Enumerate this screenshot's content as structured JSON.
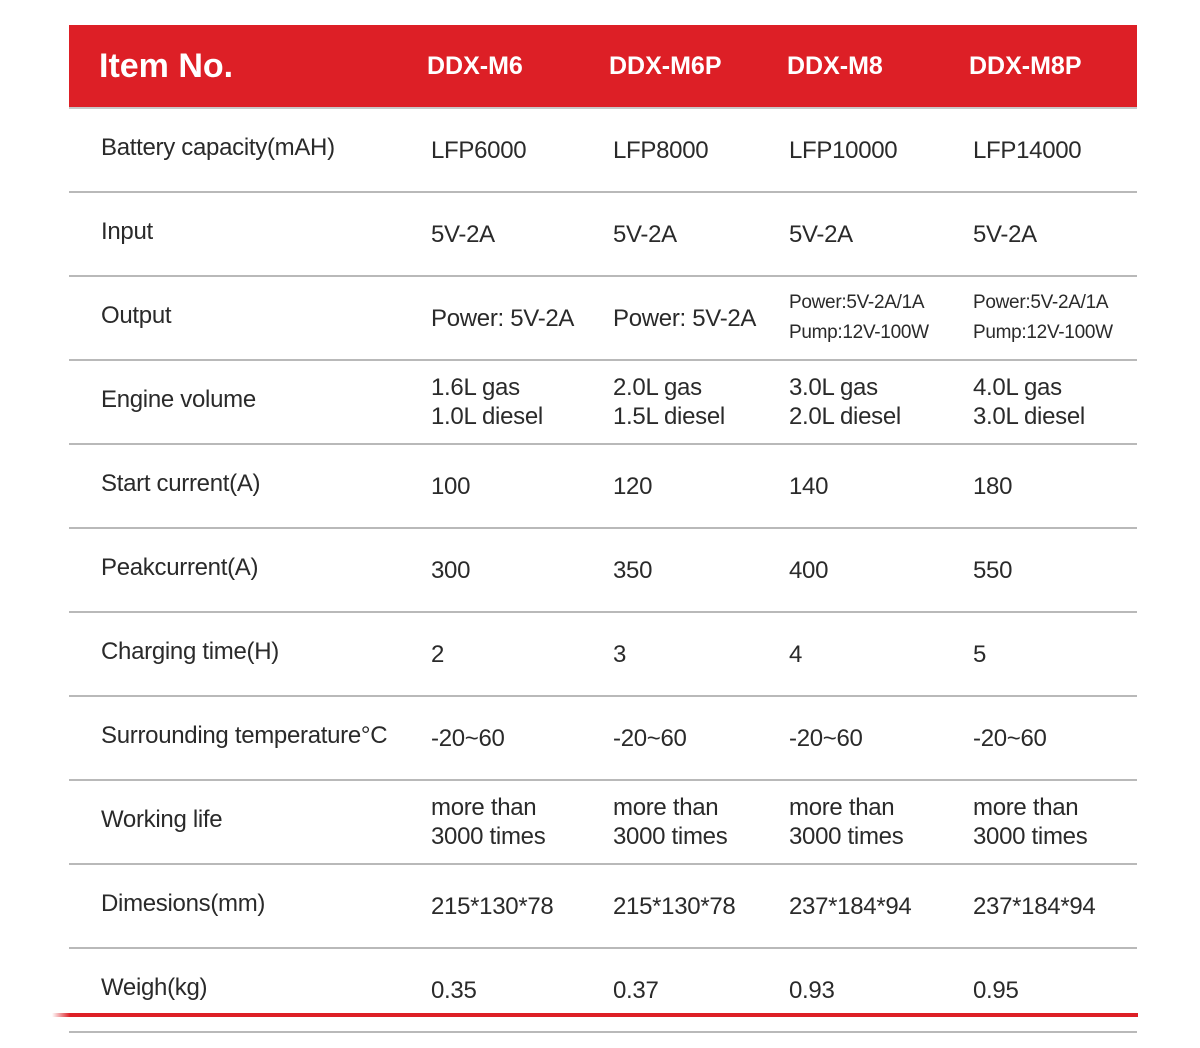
{
  "header": {
    "item_label": "Item No.",
    "models": [
      "DDX-M6",
      "DDX-M6P",
      "DDX-M8",
      "DDX-M8P"
    ]
  },
  "rows": [
    {
      "label": "Battery capacity(mAH)",
      "values": [
        [
          "LFP6000"
        ],
        [
          "LFP8000"
        ],
        [
          "LFP10000"
        ],
        [
          "LFP14000"
        ]
      ]
    },
    {
      "label": "Input",
      "values": [
        [
          "5V-2A"
        ],
        [
          "5V-2A"
        ],
        [
          "5V-2A"
        ],
        [
          "5V-2A"
        ]
      ]
    },
    {
      "label": "Output",
      "values": [
        [
          "Power: 5V-2A"
        ],
        [
          "Power: 5V-2A"
        ],
        [
          "Power:5V-2A/1A",
          "Pump:12V-100W"
        ],
        [
          "Power:5V-2A/1A",
          "Pump:12V-100W"
        ]
      ]
    },
    {
      "label": "Engine volume",
      "values": [
        [
          "1.6L gas",
          "1.0L diesel"
        ],
        [
          "2.0L gas",
          "1.5L diesel"
        ],
        [
          "3.0L gas",
          "2.0L diesel"
        ],
        [
          "4.0L gas",
          "3.0L diesel"
        ]
      ]
    },
    {
      "label": "Start current(A)",
      "values": [
        [
          "100"
        ],
        [
          "120"
        ],
        [
          "140"
        ],
        [
          "180"
        ]
      ]
    },
    {
      "label": "Peakcurrent(A)",
      "values": [
        [
          "300"
        ],
        [
          "350"
        ],
        [
          "400"
        ],
        [
          "550"
        ]
      ]
    },
    {
      "label": "Charging time(H)",
      "values": [
        [
          "2"
        ],
        [
          "3"
        ],
        [
          "4"
        ],
        [
          "5"
        ]
      ]
    },
    {
      "label": "Surrounding temperature°C",
      "values": [
        [
          "-20~60"
        ],
        [
          "-20~60"
        ],
        [
          "-20~60"
        ],
        [
          "-20~60"
        ]
      ]
    },
    {
      "label": "Working life",
      "values": [
        [
          "more than",
          "3000 times"
        ],
        [
          "more than",
          "3000 times"
        ],
        [
          "more than",
          "3000 times"
        ],
        [
          "more than",
          "3000 times"
        ]
      ]
    },
    {
      "label": "Dimesions(mm)",
      "values": [
        [
          "215*130*78"
        ],
        [
          "215*130*78"
        ],
        [
          "237*184*94"
        ],
        [
          "237*184*94"
        ]
      ]
    },
    {
      "label": "Weigh(kg)",
      "values": [
        [
          "0.35"
        ],
        [
          "0.37"
        ],
        [
          "0.93"
        ],
        [
          "0.95"
        ]
      ]
    }
  ],
  "colors": {
    "header_background": "#dd1f26",
    "header_text": "#ffffff",
    "divider": "#b9b9b9",
    "body_text": "#2a2a2a"
  }
}
